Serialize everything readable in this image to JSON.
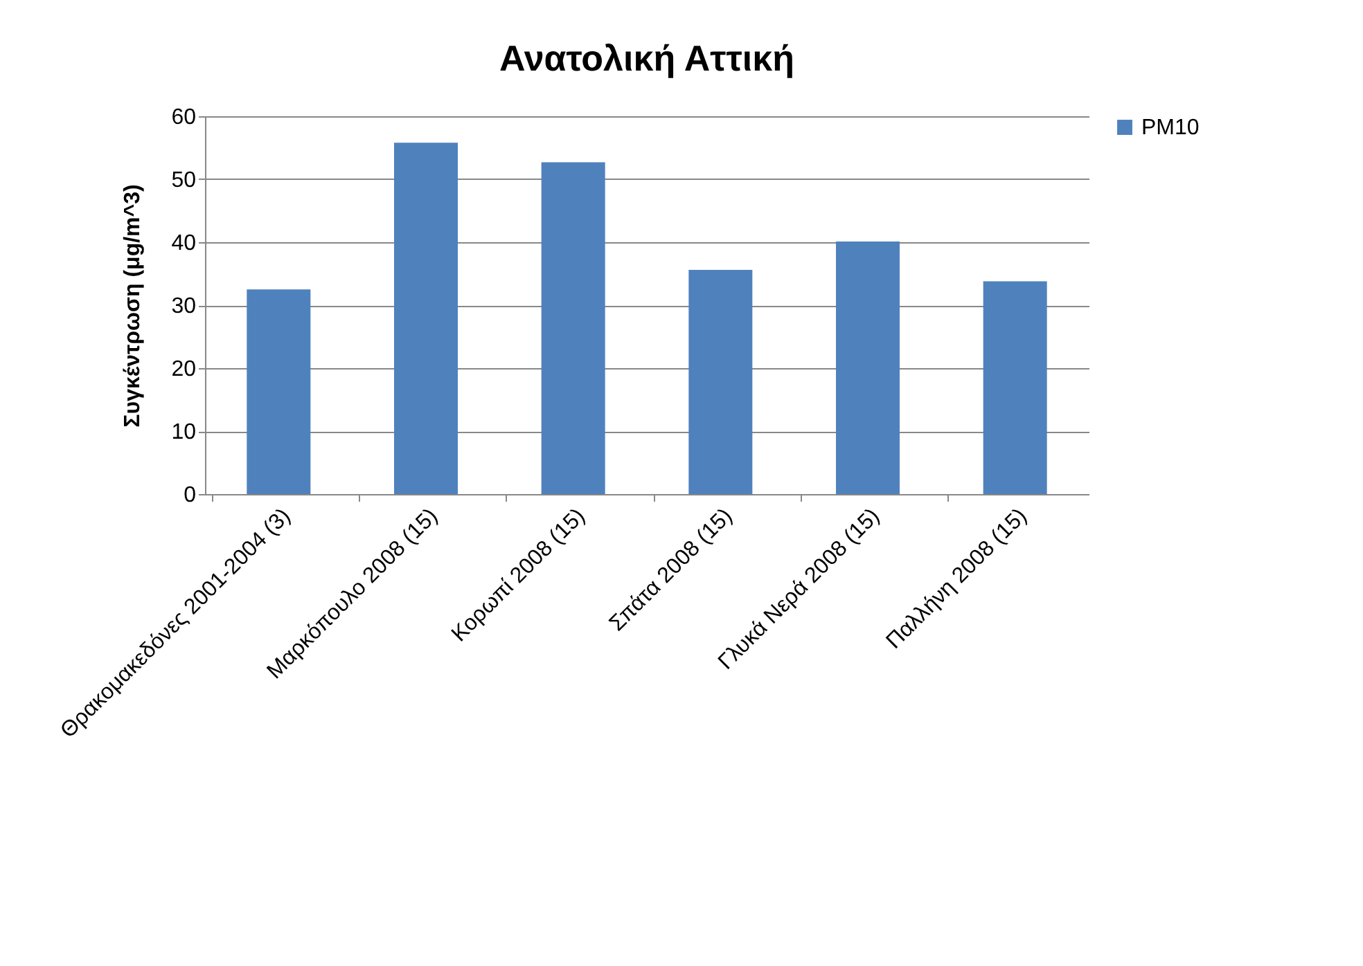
{
  "chart_data": {
    "type": "bar",
    "title": "Ανατολική Αττική",
    "ylabel": "Συγκέντρωση (μg/m^3)",
    "categories": [
      "Θρακομακεδόνες 2001-2004 (3)",
      "Μαρκόπουλο 2008 (15)",
      "Κορωπί 2008 (15)",
      "Σπάτα 2008 (15)",
      "Γλυκά Νερά 2008 (15)",
      "Παλλήνη 2008 (15)"
    ],
    "series": [
      {
        "name": "PM10",
        "color": "#4f81bd",
        "values": [
          32.5,
          55.8,
          52.7,
          35.6,
          40.1,
          33.8
        ]
      }
    ],
    "ylim": [
      0,
      60
    ],
    "yticks": [
      0,
      10,
      20,
      30,
      40,
      50,
      60
    ],
    "grid": "y",
    "legend": "right"
  }
}
